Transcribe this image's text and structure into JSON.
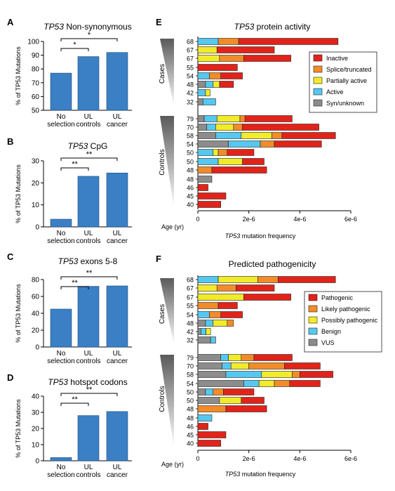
{
  "colors": {
    "bar_blue": "#3b7fc4",
    "inactive": "#e2231a",
    "splice": "#f28c28",
    "partial": "#f2eb2a",
    "active": "#55c8f0",
    "syn": "#8c8c8c"
  },
  "chart_data": [
    {
      "panel": "A",
      "type": "bar",
      "title": "TP53 Non-synonymous",
      "title_italic_part": "TP53",
      "title_rest": " Non-synonymous",
      "ylabel": "% of TP53 Mutations",
      "ylim": [
        50,
        100
      ],
      "yticks": [
        50,
        60,
        70,
        80,
        90,
        100
      ],
      "categories": [
        [
          "No",
          "selection"
        ],
        [
          "UL",
          "controls"
        ],
        [
          "UL",
          "cancer"
        ]
      ],
      "values": [
        77,
        89,
        92
      ],
      "significance": [
        {
          "from": 0,
          "to": 1,
          "label": "*"
        },
        {
          "from": 0,
          "to": 2,
          "label": "*"
        }
      ]
    },
    {
      "panel": "B",
      "type": "bar",
      "title": "TP53 CpG",
      "title_italic_part": "TP53",
      "title_rest": " CpG",
      "ylabel": "% of TP53 Mutations",
      "ylim": [
        0,
        30
      ],
      "yticks": [
        0,
        10,
        20,
        30
      ],
      "categories": [
        [
          "No",
          "selection"
        ],
        [
          "UL",
          "controls"
        ],
        [
          "UL",
          "cancer"
        ]
      ],
      "values": [
        3.5,
        23,
        24.5
      ],
      "significance": [
        {
          "from": 0,
          "to": 1,
          "label": "**"
        },
        {
          "from": 0,
          "to": 2,
          "label": "**"
        }
      ]
    },
    {
      "panel": "C",
      "type": "bar",
      "title": "TP53 exons 5-8",
      "title_italic_part": "TP53",
      "title_rest": " exons 5-8",
      "ylabel": "% of TP53 Mutations",
      "ylim": [
        0,
        80
      ],
      "yticks": [
        0,
        20,
        40,
        60,
        80
      ],
      "categories": [
        [
          "No",
          "selection"
        ],
        [
          "UL",
          "controls"
        ],
        [
          "UL",
          "cancer"
        ]
      ],
      "values": [
        45,
        72,
        72.5
      ],
      "significance": [
        {
          "from": 0,
          "to": 1,
          "label": "**"
        },
        {
          "from": 0,
          "to": 2,
          "label": "**"
        }
      ]
    },
    {
      "panel": "D",
      "type": "bar",
      "title": "TP53 hotspot codons",
      "title_italic_part": "TP53",
      "title_rest": " hotspot codons",
      "ylabel": "% of TP53 Mutations",
      "ylim": [
        0,
        40
      ],
      "yticks": [
        0,
        10,
        20,
        30,
        40
      ],
      "categories": [
        [
          "No",
          "selection"
        ],
        [
          "UL",
          "controls"
        ],
        [
          "UL",
          "cancer"
        ]
      ],
      "values": [
        2,
        28,
        30.5
      ],
      "significance": [
        {
          "from": 0,
          "to": 1,
          "label": "**"
        },
        {
          "from": 0,
          "to": 2,
          "label": "**"
        }
      ]
    },
    {
      "panel": "E",
      "type": "stacked-bar-horizontal",
      "title": "TP53 protein activity",
      "title_italic_part": "TP53",
      "title_rest": " protein activity",
      "xlabel": "TP53 mutation frequency",
      "xlabel_italic_part": "TP53",
      "xlabel_rest": " mutation frequency",
      "age_label": "Age (yr)",
      "xlim": [
        0,
        6e-06
      ],
      "xticks": [
        {
          "v": 0,
          "label": "0"
        },
        {
          "v": 2e-06,
          "label": "2e-6"
        },
        {
          "v": 4e-06,
          "label": "4e-6"
        },
        {
          "v": 6e-06,
          "label": "6e-6"
        }
      ],
      "legend": [
        "Inactive",
        "Splice/truncated",
        "Partially active",
        "Active",
        "Syn/unknown"
      ],
      "legend_colors": [
        "#e2231a",
        "#f28c28",
        "#f2eb2a",
        "#55c8f0",
        "#8c8c8c"
      ],
      "stack_order": [
        "Syn/unknown",
        "Active",
        "Partially active",
        "Splice/truncated",
        "Inactive"
      ],
      "stack_colors": [
        "#8c8c8c",
        "#55c8f0",
        "#f2eb2a",
        "#f28c28",
        "#e2231a"
      ],
      "groups": [
        {
          "name": "Cases",
          "rows": [
            {
              "age": "68",
              "values": [
                0,
                8e-07,
                0,
                8e-07,
                3.9e-06
              ]
            },
            {
              "age": "67",
              "values": [
                0,
                0,
                7.5e-07,
                0,
                2.25e-06
              ]
            },
            {
              "age": "67",
              "values": [
                0,
                0,
                8.5e-07,
                9.5e-07,
                1.85e-06
              ]
            },
            {
              "age": "55",
              "values": [
                0,
                0,
                0,
                0,
                1.55e-06
              ]
            },
            {
              "age": "54",
              "values": [
                0,
                4.5e-07,
                0,
                4.5e-07,
                8.5e-07
              ]
            },
            {
              "age": "48",
              "values": [
                3e-07,
                3e-07,
                2.5e-07,
                0,
                5.5e-07
              ]
            },
            {
              "age": "42",
              "values": [
                0,
                3e-07,
                1.8e-07,
                0,
                0
              ]
            },
            {
              "age": "32",
              "values": [
                2e-07,
                5e-07,
                0,
                0,
                0
              ]
            }
          ]
        },
        {
          "name": "Controls",
          "rows": [
            {
              "age": "79",
              "values": [
                2.5e-07,
                5e-07,
                9e-07,
                2e-07,
                1.85e-06
              ]
            },
            {
              "age": "70",
              "values": [
                3.5e-07,
                3.5e-07,
                7e-07,
                3.5e-07,
                3e-06
              ]
            },
            {
              "age": "58",
              "values": [
                7e-07,
                1e-06,
                1.2e-06,
                4e-07,
                2.1e-06
              ]
            },
            {
              "age": "54",
              "values": [
                1.2e-06,
                1.25e-06,
                0,
                5.5e-07,
                1.85e-06
              ]
            },
            {
              "age": "50",
              "values": [
                0,
                6e-07,
                2e-07,
                3.5e-07,
                1.05e-06
              ]
            },
            {
              "age": "50",
              "values": [
                0,
                8e-07,
                9.5e-07,
                0,
                8.5e-07
              ]
            },
            {
              "age": "48",
              "values": [
                0,
                0,
                0,
                5.5e-07,
                2.15e-06
              ]
            },
            {
              "age": "48",
              "values": [
                5.5e-07,
                0,
                0,
                0,
                0
              ]
            },
            {
              "age": "46",
              "values": [
                0,
                0,
                0,
                0,
                4e-07
              ]
            },
            {
              "age": "45",
              "values": [
                0,
                0,
                0,
                0,
                1.1e-06
              ]
            },
            {
              "age": "40",
              "values": [
                0,
                0,
                0,
                0,
                9e-07
              ]
            }
          ]
        }
      ]
    },
    {
      "panel": "F",
      "type": "stacked-bar-horizontal",
      "title": "Predicted pathogenicity",
      "title_italic_part": "",
      "title_rest": "Predicted pathogenicity",
      "xlabel": "TP53 mutation frequency",
      "xlabel_italic_part": "TP53",
      "xlabel_rest": " mutation frequency",
      "age_label": "Age (yr)",
      "xlim": [
        0,
        6e-06
      ],
      "xticks": [
        {
          "v": 0,
          "label": "0"
        },
        {
          "v": 2e-06,
          "label": "2e-6"
        },
        {
          "v": 4e-06,
          "label": "4e-6"
        },
        {
          "v": 6e-06,
          "label": "6e-6"
        }
      ],
      "legend": [
        "Pathogenic",
        "Likely pathogenic",
        "Possibly pathogenic",
        "Benign",
        "VUS"
      ],
      "legend_colors": [
        "#e2231a",
        "#f28c28",
        "#f2eb2a",
        "#55c8f0",
        "#8c8c8c"
      ],
      "stack_order": [
        "VUS",
        "Benign",
        "Possibly pathogenic",
        "Likely pathogenic",
        "Pathogenic"
      ],
      "stack_colors": [
        "#8c8c8c",
        "#55c8f0",
        "#f2eb2a",
        "#f28c28",
        "#e2231a"
      ],
      "groups": [
        {
          "name": "Cases",
          "rows": [
            {
              "age": "68",
              "values": [
                0,
                8e-07,
                1.55e-06,
                8e-07,
                2.25e-06
              ]
            },
            {
              "age": "67",
              "values": [
                0,
                0,
                7.5e-07,
                7.5e-07,
                1.5e-06
              ]
            },
            {
              "age": "67",
              "values": [
                0,
                0,
                1.8e-06,
                0,
                1.85e-06
              ]
            },
            {
              "age": "55",
              "values": [
                0,
                0,
                0,
                8e-07,
                7.5e-07
              ]
            },
            {
              "age": "54",
              "values": [
                0,
                4.5e-07,
                0,
                4.5e-07,
                8.5e-07
              ]
            },
            {
              "age": "48",
              "values": [
                3e-07,
                3e-07,
                5.5e-07,
                2.5e-07,
                0
              ]
            },
            {
              "age": "42",
              "values": [
                1.2e-07,
                2e-07,
                1.8e-07,
                0,
                0
              ]
            },
            {
              "age": "32",
              "values": [
                5e-07,
                2e-07,
                0,
                0,
                0
              ]
            }
          ]
        },
        {
          "name": "Controls",
          "rows": [
            {
              "age": "79",
              "values": [
                9e-07,
                3e-07,
                5e-07,
                5e-07,
                1.5e-06
              ]
            },
            {
              "age": "70",
              "values": [
                9.5e-07,
                3.5e-07,
                7e-07,
                1.4e-06,
                1.4e-06
              ]
            },
            {
              "age": "58",
              "values": [
                1.1e-06,
                1.4e-06,
                1.2e-06,
                3e-07,
                1.3e-06
              ]
            },
            {
              "age": "54",
              "values": [
                1.8e-06,
                6e-07,
                6e-07,
                6e-07,
                1.2e-06
              ]
            },
            {
              "age": "50",
              "values": [
                3e-07,
                3e-07,
                0,
                4e-07,
                1.2e-06
              ]
            },
            {
              "age": "50",
              "values": [
                8.5e-07,
                0,
                8.5e-07,
                0,
                9e-07
              ]
            },
            {
              "age": "48",
              "values": [
                0,
                0,
                0,
                1.1e-06,
                1.6e-06
              ]
            },
            {
              "age": "48",
              "values": [
                0,
                5.5e-07,
                0,
                0,
                0
              ]
            },
            {
              "age": "46",
              "values": [
                0,
                0,
                0,
                0,
                4e-07
              ]
            },
            {
              "age": "45",
              "values": [
                0,
                0,
                0,
                0,
                1.1e-06
              ]
            },
            {
              "age": "40",
              "values": [
                0,
                0,
                0,
                0,
                9e-07
              ]
            }
          ]
        }
      ]
    }
  ]
}
